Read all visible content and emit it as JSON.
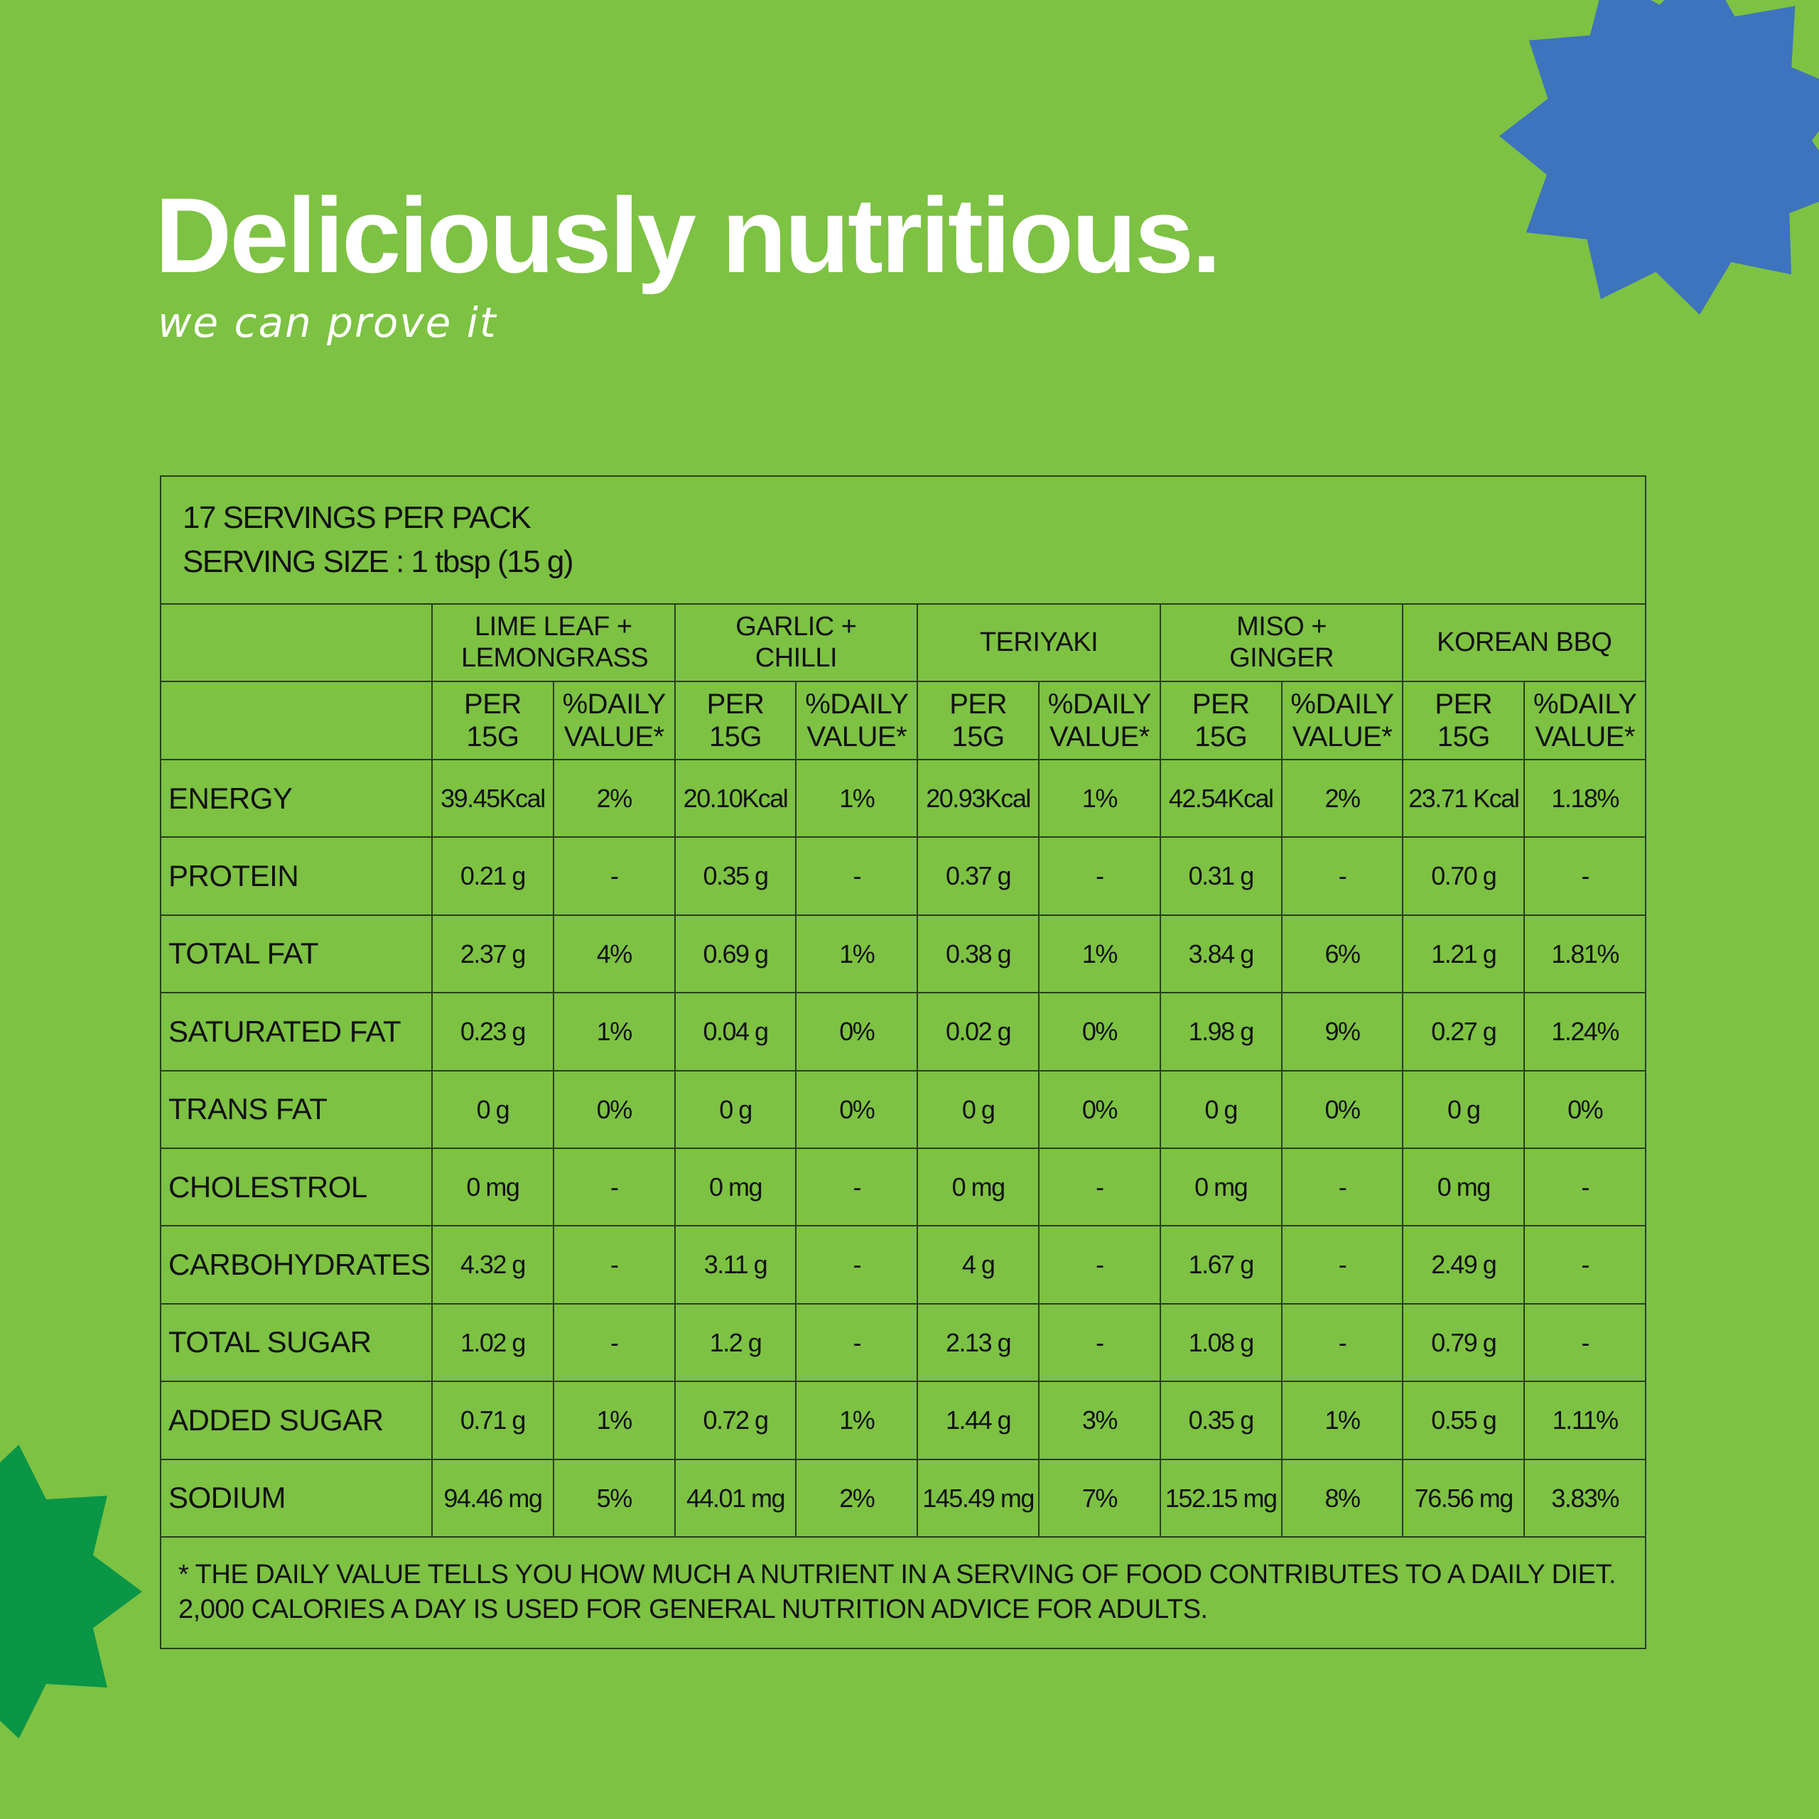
{
  "header": {
    "title": "Deliciously nutritious.",
    "subtitle": "we can prove it"
  },
  "table": {
    "servings": "17 SERVINGS PER PACK",
    "serving_size": "SERVING SIZE : 1 tbsp (15 g)",
    "flavors": [
      "LIME LEAF + LEMONGRASS",
      "GARLIC + CHILLI",
      "TERIYAKI",
      "MISO + GINGER",
      "KOREAN BBQ"
    ],
    "subheaders": [
      "PER 15G",
      "%DAILY VALUE*",
      "PER 15G",
      "%DAILY VALUE*",
      "PER 15G",
      "%DAILY VALUE*",
      "PER 15G",
      "%DAILY VALUE*",
      "PER 15G",
      "%DAILY VALUE*"
    ],
    "rows": [
      {
        "label": "ENERGY",
        "cells": [
          "39.45Kcal",
          "2%",
          "20.10Kcal",
          "1%",
          "20.93Kcal",
          "1%",
          "42.54Kcal",
          "2%",
          "23.71 Kcal",
          "1.18%"
        ]
      },
      {
        "label": "PROTEIN",
        "cells": [
          "0.21 g",
          "-",
          "0.35 g",
          "-",
          "0.37 g",
          "-",
          "0.31 g",
          "-",
          "0.70 g",
          "-"
        ]
      },
      {
        "label": "TOTAL FAT",
        "cells": [
          "2.37 g",
          "4%",
          "0.69 g",
          "1%",
          "0.38 g",
          "1%",
          "3.84 g",
          "6%",
          "1.21 g",
          "1.81%"
        ]
      },
      {
        "label": "SATURATED FAT",
        "cells": [
          "0.23 g",
          "1%",
          "0.04 g",
          "0%",
          "0.02 g",
          "0%",
          "1.98 g",
          "9%",
          "0.27 g",
          "1.24%"
        ]
      },
      {
        "label": "TRANS FAT",
        "cells": [
          "0 g",
          "0%",
          "0 g",
          "0%",
          "0 g",
          "0%",
          "0 g",
          "0%",
          "0 g",
          "0%"
        ]
      },
      {
        "label": "CHOLESTROL",
        "cells": [
          "0 mg",
          "-",
          "0 mg",
          "-",
          "0 mg",
          "-",
          "0 mg",
          "-",
          "0 mg",
          "-"
        ]
      },
      {
        "label": "CARBOHYDRATES",
        "cells": [
          "4.32 g",
          "-",
          "3.11 g",
          "-",
          "4 g",
          "-",
          "1.67 g",
          "-",
          "2.49 g",
          "-"
        ]
      },
      {
        "label": "TOTAL SUGAR",
        "cells": [
          "1.02 g",
          "-",
          "1.2 g",
          "-",
          "2.13 g",
          "-",
          "1.08 g",
          "-",
          "0.79 g",
          "-"
        ]
      },
      {
        "label": "ADDED SUGAR",
        "cells": [
          "0.71 g",
          "1%",
          "0.72 g",
          "1%",
          "1.44 g",
          "3%",
          "0.35 g",
          "1%",
          "0.55 g",
          "1.11%"
        ]
      },
      {
        "label": "SODIUM",
        "cells": [
          "94.46 mg",
          "5%",
          "44.01 mg",
          "2%",
          "145.49 mg",
          "7%",
          "152.15 mg",
          "8%",
          "76.56 mg",
          "3.83%"
        ]
      }
    ],
    "footnote": "* THE DAILY VALUE TELLS YOU HOW MUCH A NUTRIENT IN A SERVING OF FOOD CONTRIBUTES TO A DAILY DIET. 2,000 CALORIES A DAY IS USED FOR GENERAL NUTRITION ADVICE FOR ADULTS."
  }
}
